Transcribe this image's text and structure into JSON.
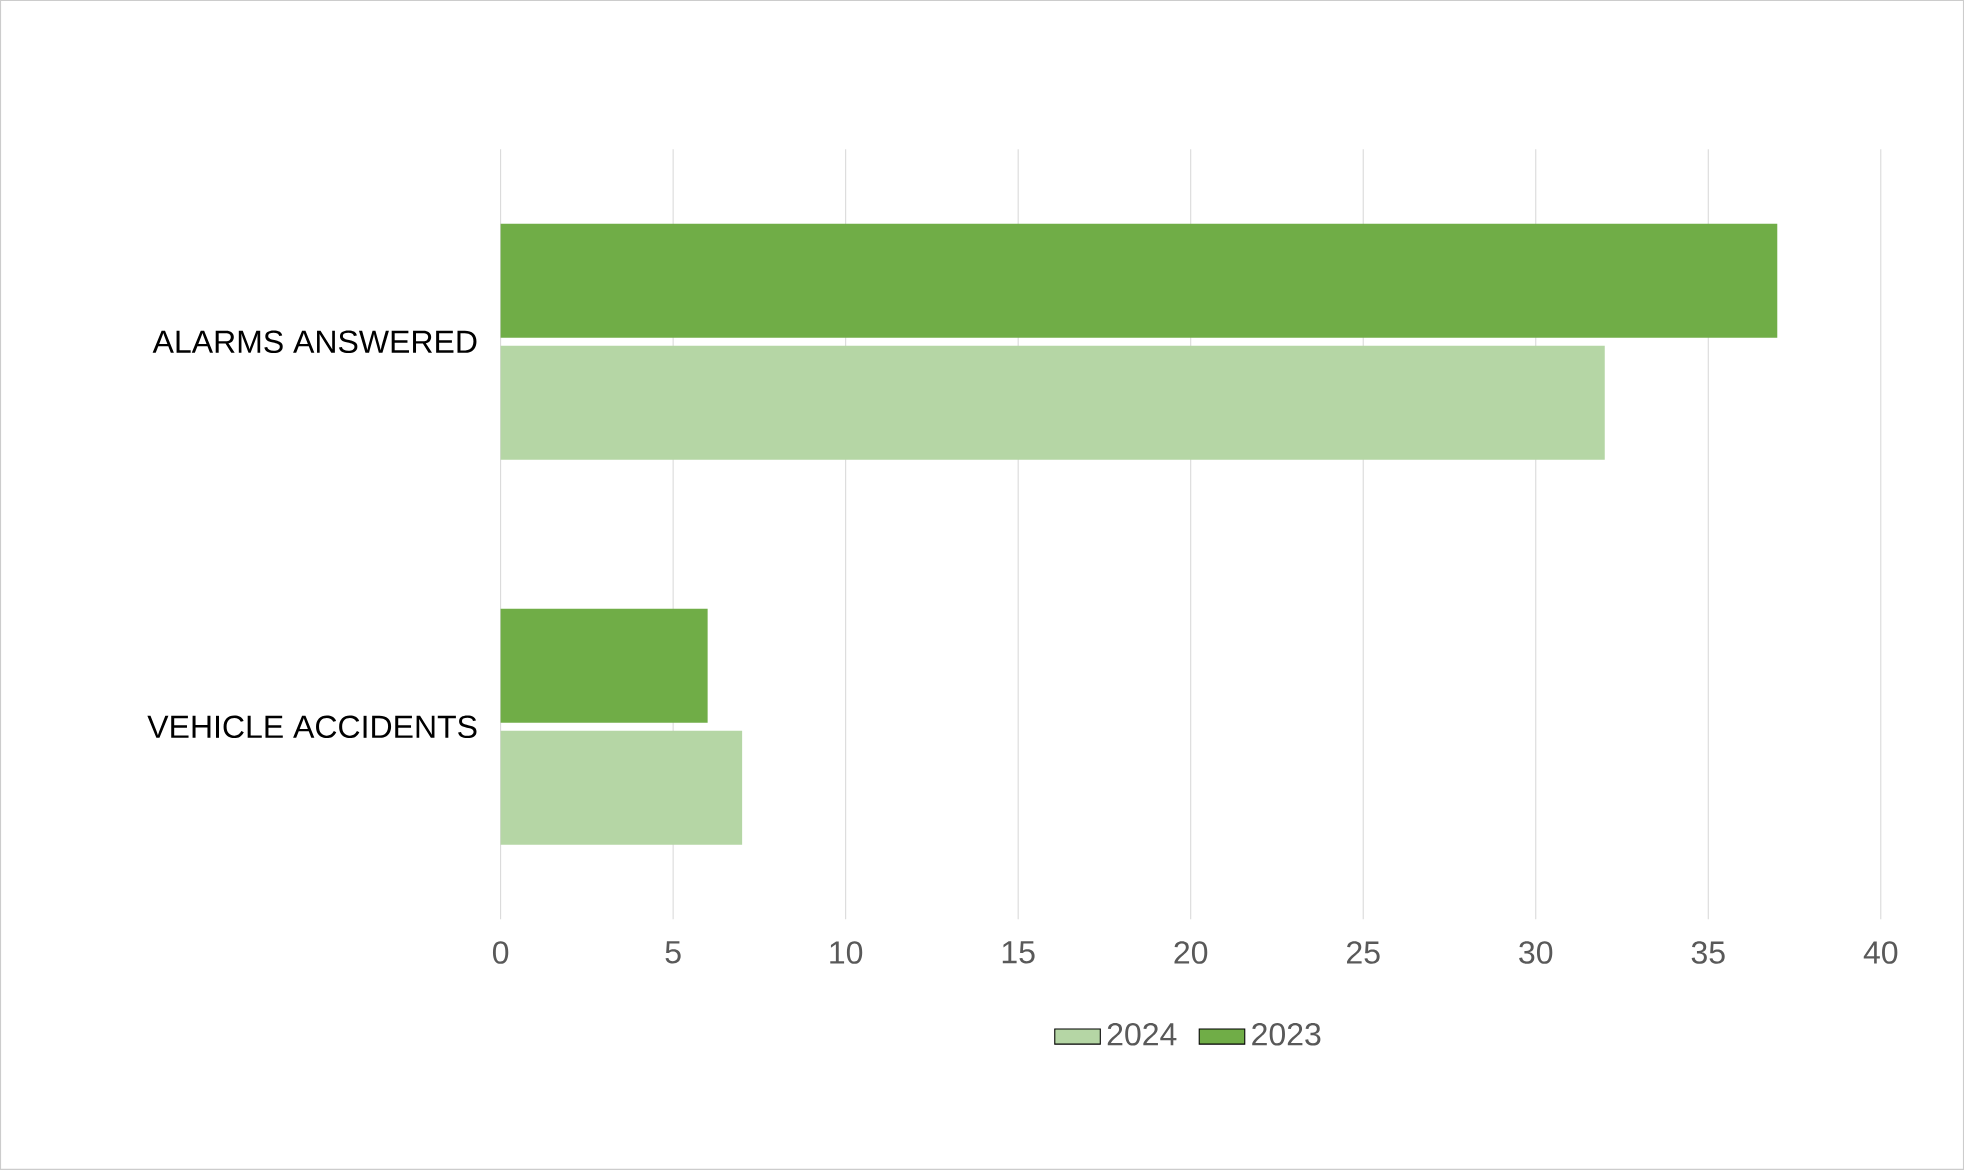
{
  "chart_data": {
    "type": "bar",
    "orientation": "horizontal",
    "categories": [
      "ALARMS ANSWERED",
      "VEHICLE ACCIDENTS"
    ],
    "series": [
      {
        "name": "2024",
        "color": "#b5d6a5",
        "values": [
          32,
          7
        ]
      },
      {
        "name": "2023",
        "color": "#70ad47",
        "values": [
          37,
          6
        ]
      }
    ],
    "xlim": [
      0,
      40
    ],
    "xticks": [
      0,
      5,
      10,
      15,
      20,
      25,
      30,
      35,
      40
    ],
    "grid": "x",
    "legend": "bottom"
  }
}
